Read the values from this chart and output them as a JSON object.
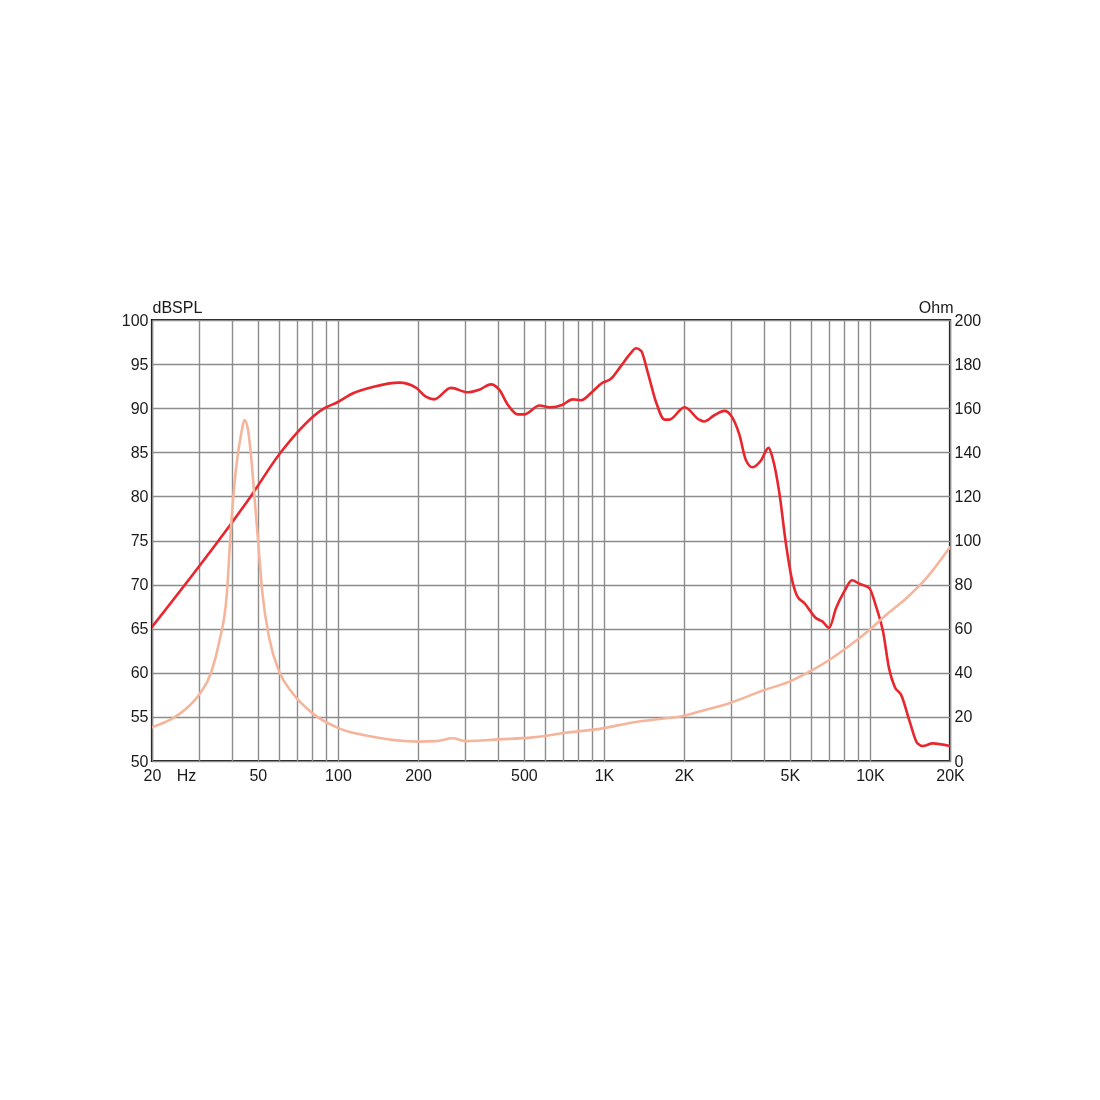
{
  "chart_data": {
    "type": "line",
    "xlabel": "Hz",
    "ylabel": "dBSPL",
    "y2label": "Ohm",
    "log": "x",
    "grid": true,
    "xlim": [
      20,
      20000
    ],
    "xticks": [
      20,
      {
        "value": 30,
        "label": null
      },
      {
        "value": 40,
        "label": null
      },
      50,
      {
        "value": 60,
        "label": null
      },
      {
        "value": 70,
        "label": null
      },
      {
        "value": 80,
        "label": null
      },
      {
        "value": 90,
        "label": null
      },
      100,
      200,
      {
        "value": 300,
        "label": null
      },
      {
        "value": 400,
        "label": null
      },
      500,
      {
        "value": 600,
        "label": null
      },
      {
        "value": 700,
        "label": null
      },
      {
        "value": 800,
        "label": null
      },
      {
        "value": 900,
        "label": null
      },
      {
        "value": 1000,
        "label": "1K"
      },
      {
        "value": 2000,
        "label": "2K"
      },
      {
        "value": 3000,
        "label": null
      },
      {
        "value": 4000,
        "label": null
      },
      {
        "value": 5000,
        "label": "5K"
      },
      {
        "value": 6000,
        "label": null
      },
      {
        "value": 7000,
        "label": null
      },
      {
        "value": 8000,
        "label": null
      },
      {
        "value": 9000,
        "label": null
      },
      {
        "value": 10000,
        "label": "10K"
      },
      {
        "value": 20000,
        "label": "20K"
      }
    ],
    "ylim": [
      50,
      100
    ],
    "yticks": [
      50,
      55,
      60,
      65,
      70,
      75,
      80,
      85,
      90,
      95,
      100
    ],
    "y2lim": [
      0,
      200
    ],
    "y2ticks": [
      0,
      20,
      40,
      60,
      80,
      100,
      120,
      140,
      160,
      180,
      200
    ],
    "series": [
      {
        "color": "#e8262d",
        "x": [
          20,
          47,
          61,
          89,
          100,
          114,
          135,
          170,
          197,
          214,
          230,
          266,
          308,
          340,
          376,
          404,
          435,
          474,
          502,
          572,
          632,
          699,
          762,
          820,
          907,
          989,
          1060,
          1160,
          1250,
          1320,
          1380,
          1460,
          1570,
          1690,
          1760,
          2010,
          2280,
          2380,
          2600,
          2840,
          3000,
          3230,
          3420,
          3620,
          3900,
          4160,
          4310,
          4560,
          4840,
          5050,
          5350,
          5670,
          6270,
          6640,
          7030,
          7450,
          8000,
          8560,
          9120,
          9950,
          10500,
          11200,
          11800,
          12400,
          13100,
          14100,
          15100,
          15800,
          17200,
          20000
        ],
        "values": [
          65.2,
          80.0,
          85.0,
          90.0,
          90.7,
          91.7,
          92.4,
          92.9,
          92.3,
          91.3,
          91.0,
          92.3,
          91.8,
          92.1,
          92.7,
          92.1,
          90.4,
          89.3,
          89.3,
          90.3,
          90.1,
          90.4,
          91.0,
          90.9,
          91.9,
          92.9,
          93.3,
          94.8,
          96.1,
          96.8,
          96.5,
          94.1,
          90.7,
          88.7,
          88.7,
          90.1,
          88.7,
          88.5,
          89.2,
          89.7,
          89.2,
          87.0,
          84.1,
          83.3,
          84.1,
          85.5,
          84.3,
          80.5,
          74.5,
          71.1,
          68.6,
          67.9,
          66.2,
          65.8,
          65.1,
          67.3,
          69.2,
          70.5,
          70.1,
          69.6,
          67.7,
          64.7,
          60.5,
          58.4,
          57.5,
          54.5,
          52.0,
          51.7,
          52.0,
          51.7
        ]
      },
      {
        "color": "#f5b59c",
        "axis": "y2",
        "x": [
          20,
          24,
          27,
          30,
          33.3,
          35.8,
          38.2,
          39.6,
          41.4,
          43.2,
          44.5,
          45.8,
          47.1,
          48.5,
          49.9,
          52.1,
          55.2,
          60.2,
          67.6,
          80.3,
          101,
          135,
          200,
          234,
          270,
          303,
          404,
          539,
          720,
          989,
          1280,
          1710,
          1920,
          2280,
          2960,
          4010,
          4980,
          6090,
          7030,
          8130,
          9950,
          11500,
          13700,
          16300,
          20000
        ],
        "values": [
          15.3,
          19.4,
          23.9,
          29.9,
          39.8,
          54.1,
          75.3,
          105.5,
          132.7,
          147.8,
          154.6,
          150.9,
          138.8,
          120.6,
          102.5,
          75.3,
          55.6,
          40.5,
          30.7,
          21.6,
          14.8,
          11.0,
          8.8,
          9.0,
          10.3,
          9.0,
          9.8,
          10.7,
          12.8,
          14.8,
          17.5,
          19.4,
          20.1,
          22.4,
          26.2,
          32.2,
          36.0,
          41.3,
          45.8,
          51.1,
          59.4,
          66.2,
          73.8,
          82.9,
          97
        ]
      }
    ]
  }
}
